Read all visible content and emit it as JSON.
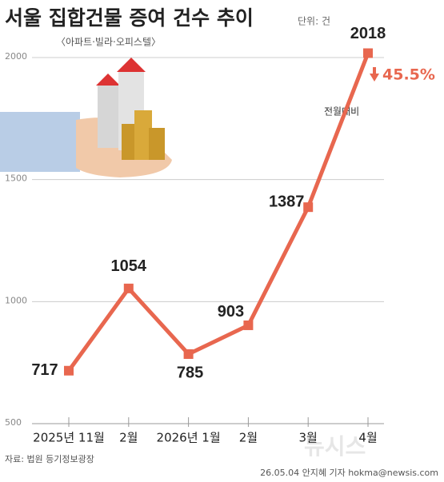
{
  "chart_data": {
    "type": "line",
    "title": "서울 집합건물 증여 건수 추이",
    "unit": "단위: 건",
    "subtitle": "〈아파트·빌라·오피스텔〉",
    "categories": [
      "2025년 11월",
      "2월",
      "2026년 1월",
      "2월",
      "3월",
      "4월"
    ],
    "values": [
      717,
      1054,
      785,
      903,
      1387,
      2018
    ],
    "color": "#e8674f",
    "ylim": [
      500,
      2000
    ],
    "yticks": [
      500,
      1000,
      1500,
      2000
    ],
    "grid": true,
    "annotation": {
      "change": "45.5%",
      "note": "전월대비"
    },
    "source": "자료: 법원 등기정보광장",
    "credit": "26.05.04 안지혜 기자 hokma@newsis.com",
    "watermark": "뉴시스"
  }
}
